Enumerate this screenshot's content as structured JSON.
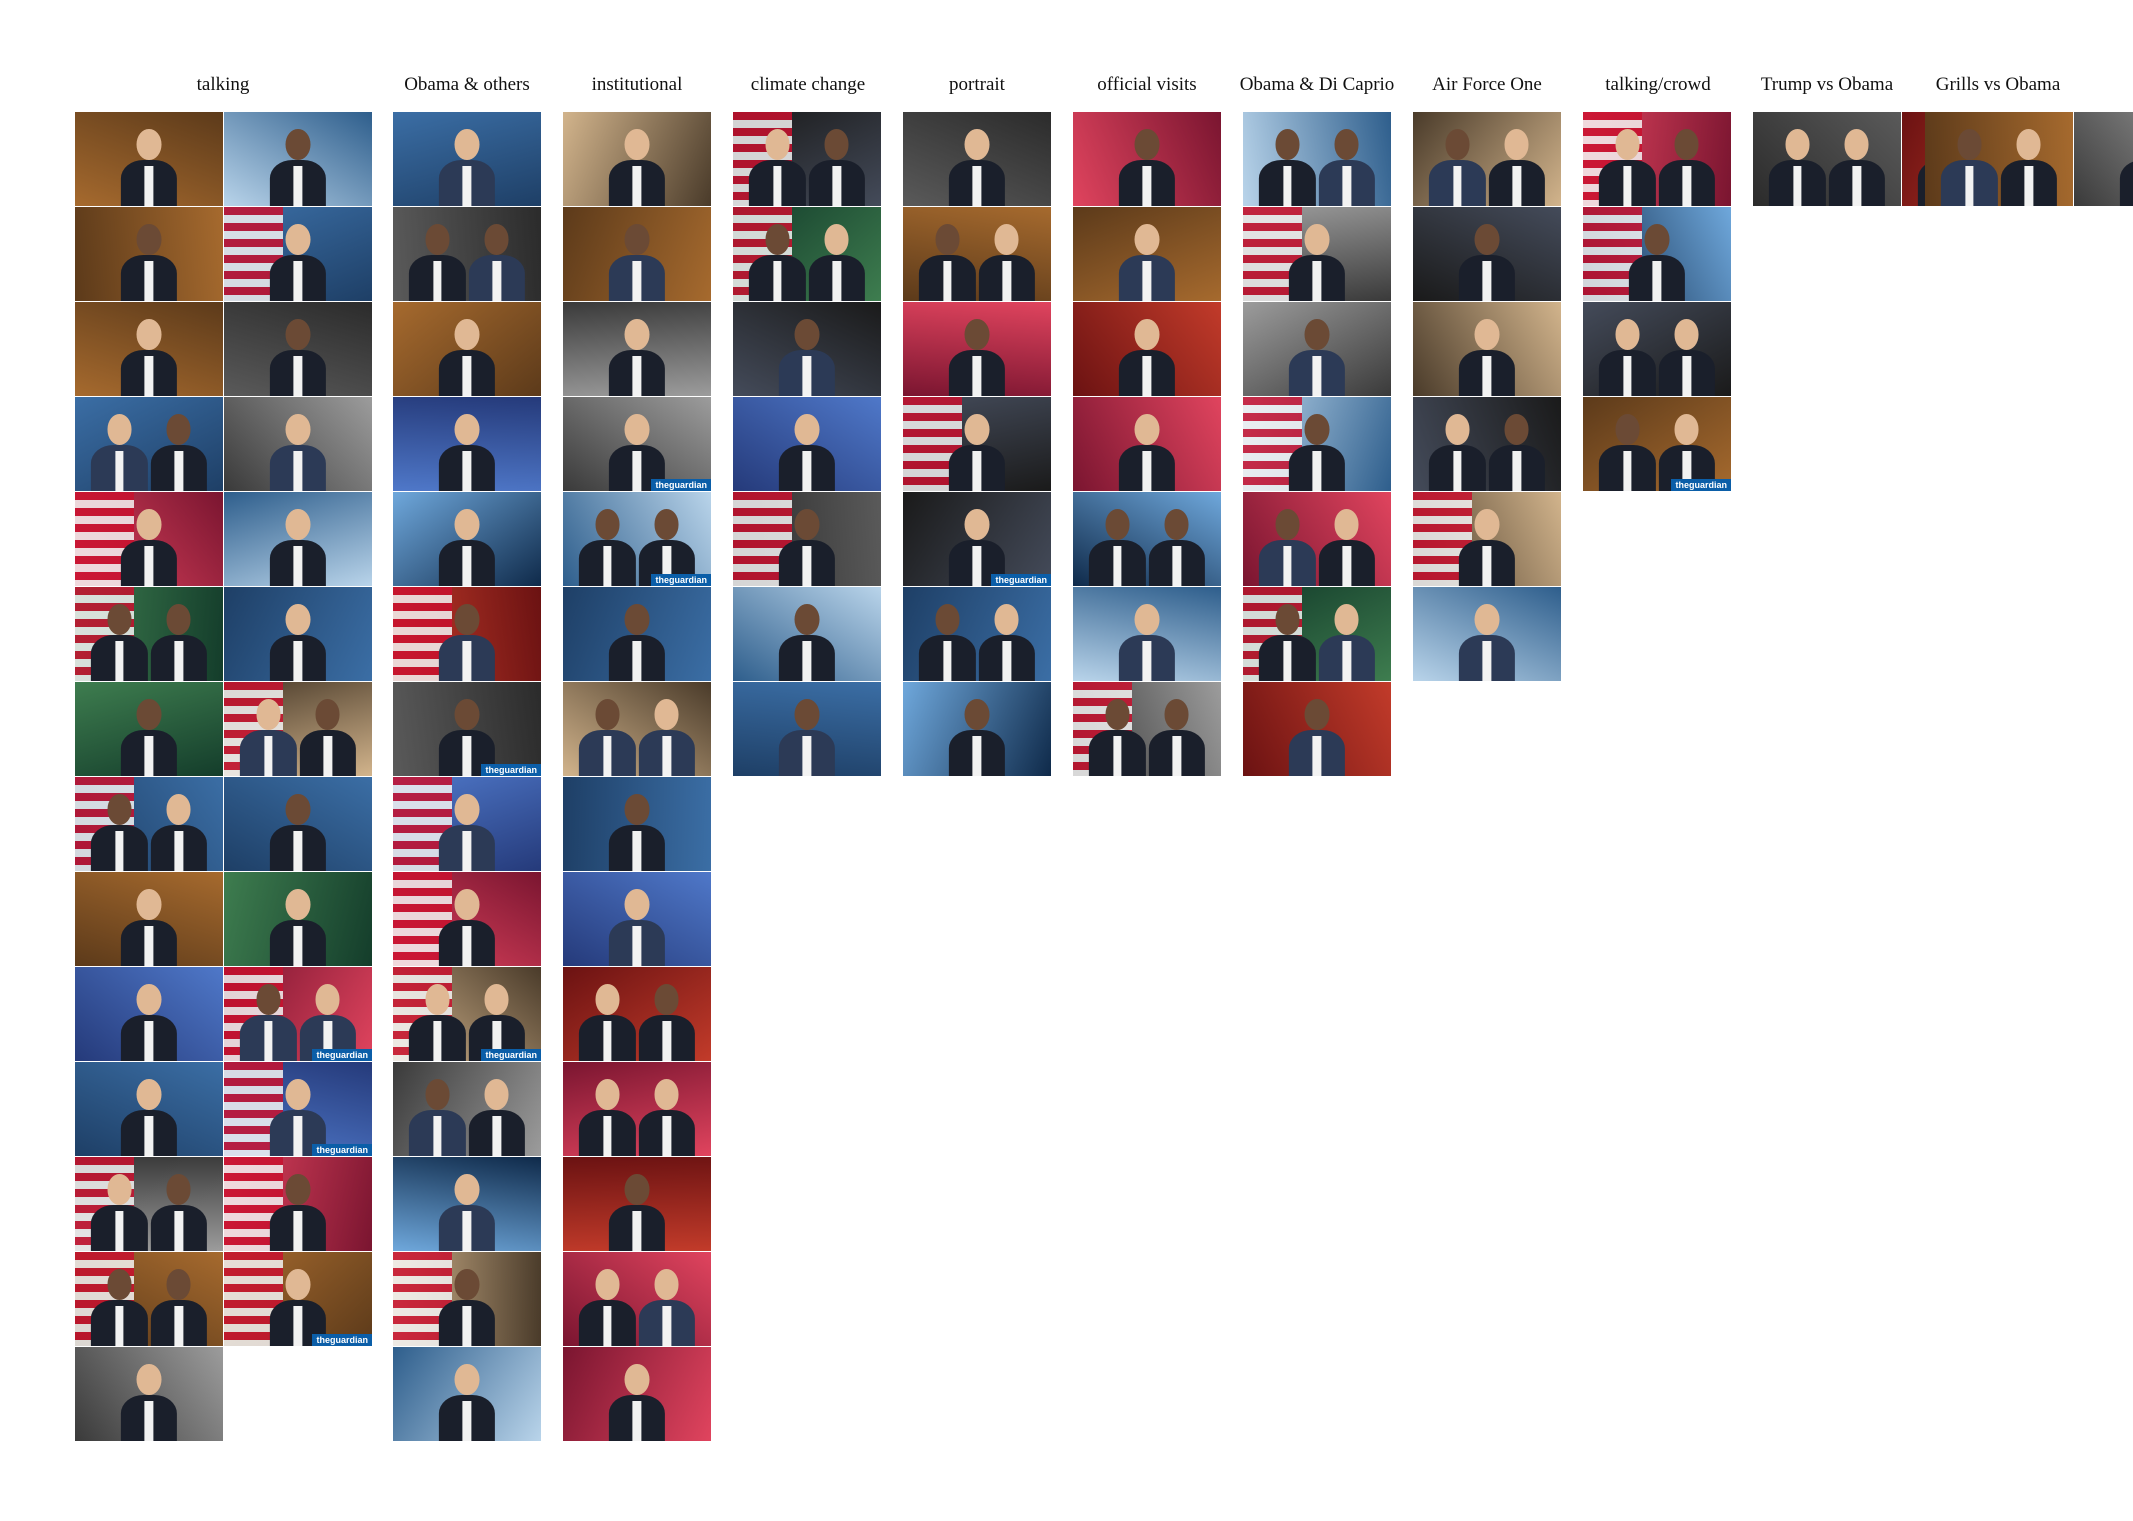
{
  "categories": [
    {
      "title": "talking",
      "count": 27
    },
    {
      "title": "Obama & others",
      "count": 14
    },
    {
      "title": "institutional",
      "count": 14
    },
    {
      "title": "climate change",
      "count": 7
    },
    {
      "title": "portrait",
      "count": 7
    },
    {
      "title": "official visits",
      "count": 7
    },
    {
      "title": "Obama & Di Caprio",
      "count": 7
    },
    {
      "title": "Air Force One",
      "count": 6
    },
    {
      "title": "talking/crowd",
      "count": 4
    },
    {
      "title": "Trump vs Obama",
      "count": 2
    },
    {
      "title": "Grills vs Obama",
      "count": 2
    }
  ],
  "watermark": "theguardian",
  "colors": {
    "background": "#ffffff",
    "text": "#111111",
    "guardian_blue": "#0b5ea8"
  }
}
